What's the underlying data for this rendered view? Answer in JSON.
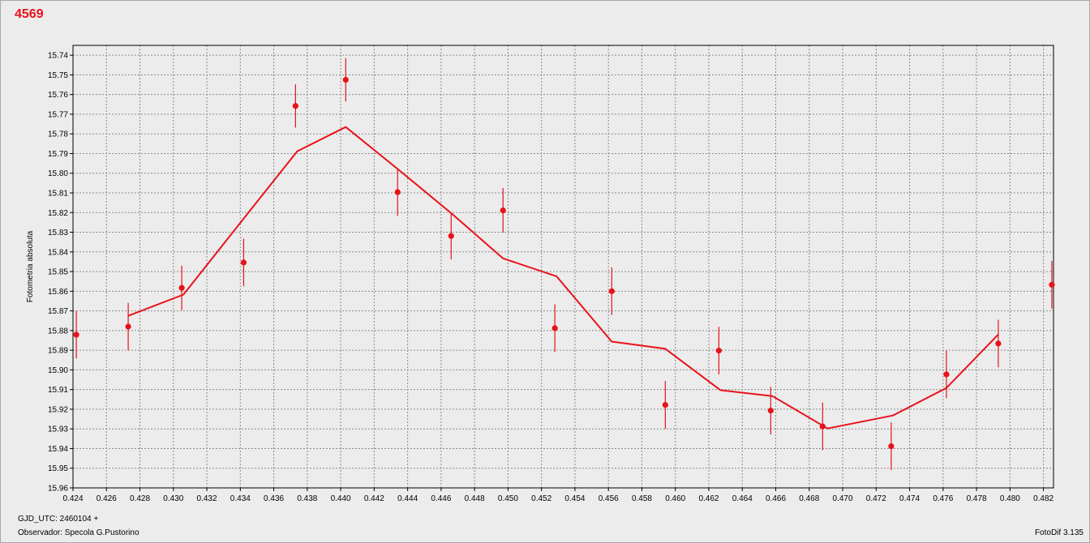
{
  "chart_data": {
    "type": "scatter",
    "title": "4569",
    "ylabel": "Fotometria absoluta",
    "y_inverted": true,
    "xlim": [
      0.424,
      0.4826
    ],
    "ylim": [
      15.735,
      15.96
    ],
    "grid": true,
    "x_ticks": [
      "0.424",
      "0.426",
      "0.428",
      "0.430",
      "0.432",
      "0.434",
      "0.436",
      "0.438",
      "0.440",
      "0.442",
      "0.444",
      "0.446",
      "0.448",
      "0.450",
      "0.452",
      "0.454",
      "0.456",
      "0.458",
      "0.460",
      "0.462",
      "0.464",
      "0.466",
      "0.468",
      "0.470",
      "0.472",
      "0.474",
      "0.476",
      "0.478",
      "0.480",
      "0.482"
    ],
    "y_ticks": [
      "15.74",
      "15.75",
      "15.76",
      "15.77",
      "15.78",
      "15.79",
      "15.80",
      "15.81",
      "15.82",
      "15.83",
      "15.84",
      "15.85",
      "15.86",
      "15.87",
      "15.88",
      "15.89",
      "15.90",
      "15.91",
      "15.92",
      "15.93",
      "15.94",
      "15.95",
      "15.96"
    ],
    "color": "#e8121a",
    "series": [
      {
        "kind": "points_with_errorbars",
        "points": [
          {
            "x": 0.4242,
            "y": 15.8821,
            "err": 0.0121
          },
          {
            "x": 0.4273,
            "y": 15.878,
            "err": 0.0121
          },
          {
            "x": 0.4305,
            "y": 15.8583,
            "err": 0.0113
          },
          {
            "x": 0.4342,
            "y": 15.8454,
            "err": 0.0121
          },
          {
            "x": 0.4373,
            "y": 15.7658,
            "err": 0.011
          },
          {
            "x": 0.4403,
            "y": 15.7525,
            "err": 0.011
          },
          {
            "x": 0.4434,
            "y": 15.8096,
            "err": 0.0121
          },
          {
            "x": 0.4466,
            "y": 15.8319,
            "err": 0.0119
          },
          {
            "x": 0.4497,
            "y": 15.8189,
            "err": 0.0113
          },
          {
            "x": 0.4528,
            "y": 15.8788,
            "err": 0.0121
          },
          {
            "x": 0.4562,
            "y": 15.86,
            "err": 0.0121
          },
          {
            "x": 0.4594,
            "y": 15.9178,
            "err": 0.0121
          },
          {
            "x": 0.4626,
            "y": 15.8902,
            "err": 0.0121
          },
          {
            "x": 0.4657,
            "y": 15.9207,
            "err": 0.0121
          },
          {
            "x": 0.4688,
            "y": 15.9287,
            "err": 0.0121
          },
          {
            "x": 0.4729,
            "y": 15.9388,
            "err": 0.0121
          },
          {
            "x": 0.4762,
            "y": 15.9023,
            "err": 0.0121
          },
          {
            "x": 0.4793,
            "y": 15.8866,
            "err": 0.0121
          },
          {
            "x": 0.4825,
            "y": 15.8567,
            "err": 0.0121
          }
        ]
      },
      {
        "kind": "line",
        "points": [
          {
            "x": 0.4273,
            "y": 15.8725
          },
          {
            "x": 0.4306,
            "y": 15.8617
          },
          {
            "x": 0.4343,
            "y": 15.822
          },
          {
            "x": 0.4374,
            "y": 15.7888
          },
          {
            "x": 0.4403,
            "y": 15.7765
          },
          {
            "x": 0.4435,
            "y": 15.7985
          },
          {
            "x": 0.4466,
            "y": 15.8203
          },
          {
            "x": 0.4497,
            "y": 15.8433
          },
          {
            "x": 0.4529,
            "y": 15.8524
          },
          {
            "x": 0.4562,
            "y": 15.8856
          },
          {
            "x": 0.4594,
            "y": 15.8893
          },
          {
            "x": 0.4627,
            "y": 15.9103
          },
          {
            "x": 0.4658,
            "y": 15.9133
          },
          {
            "x": 0.4691,
            "y": 15.9298
          },
          {
            "x": 0.473,
            "y": 15.9232
          },
          {
            "x": 0.4762,
            "y": 15.9092
          },
          {
            "x": 0.4793,
            "y": 15.882
          }
        ]
      }
    ]
  },
  "footer": {
    "gjd": "GJD_UTC: 2460104 +",
    "observer": "Observador: Specola G.Pustorino",
    "software": "FotoDif 3.135"
  }
}
